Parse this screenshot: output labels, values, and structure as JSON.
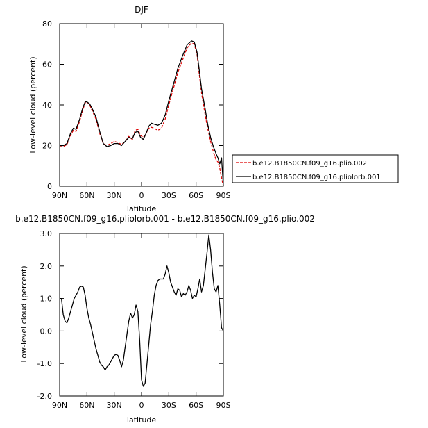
{
  "chart_data": [
    {
      "type": "line",
      "title": "DJF",
      "xlabel": "latitude",
      "ylabel": "Low-level cloud (percent)",
      "xlim": [
        90,
        -90
      ],
      "ylim": [
        0,
        80
      ],
      "xticks": [
        90,
        60,
        30,
        0,
        -30,
        -60,
        -90
      ],
      "xtick_labels": [
        "90N",
        "60N",
        "30N",
        "0",
        "30S",
        "60S",
        "90S"
      ],
      "yticks": [
        0,
        20,
        40,
        60,
        80
      ],
      "ytick_labels": [
        "0",
        "20",
        "40",
        "60",
        "80"
      ],
      "grid": false,
      "legend_position": "right",
      "series": [
        {
          "name": "b.e12.B1850CN.f09_g16.plio.002",
          "color": "#dd0000",
          "style": "dashed",
          "x": [
            90,
            86,
            82,
            78,
            75,
            72,
            68,
            65,
            62,
            60,
            57,
            54,
            50,
            46,
            42,
            38,
            34,
            30,
            26,
            22,
            18,
            14,
            10,
            7,
            4,
            1,
            -2,
            -5,
            -8,
            -11,
            -14,
            -18,
            -22,
            -26,
            -30,
            -35,
            -40,
            -45,
            -50,
            -55,
            -58,
            -61,
            -63,
            -66,
            -70,
            -73,
            -76,
            -79,
            -82,
            -84,
            -86,
            -88,
            -90
          ],
          "values": [
            19.5,
            19.5,
            20.5,
            25,
            27.5,
            27,
            32,
            37,
            41,
            41.5,
            40,
            37,
            33,
            26,
            21,
            20,
            21,
            22,
            21.5,
            20.5,
            22,
            24.5,
            23,
            27.5,
            28,
            25,
            24,
            26,
            28.5,
            29,
            28.5,
            27.5,
            28.5,
            33,
            40,
            48,
            56,
            62,
            68,
            70.5,
            70,
            65,
            57,
            46,
            35,
            28,
            22,
            17,
            13,
            12,
            9,
            4,
            0
          ]
        },
        {
          "name": "b.e12.B1850CN.f09_g16.pliolorb.001",
          "color": "#000000",
          "style": "solid",
          "x": [
            90,
            86,
            82,
            78,
            75,
            72,
            68,
            65,
            62,
            60,
            57,
            54,
            50,
            46,
            42,
            38,
            34,
            30,
            26,
            22,
            18,
            14,
            10,
            7,
            4,
            1,
            -2,
            -5,
            -8,
            -11,
            -14,
            -18,
            -22,
            -26,
            -30,
            -35,
            -40,
            -45,
            -50,
            -55,
            -58,
            -61,
            -63,
            -66,
            -70,
            -73,
            -76,
            -79,
            -82,
            -84,
            -86,
            -88,
            -90
          ],
          "values": [
            20,
            20,
            21,
            26,
            28.5,
            28,
            33,
            38,
            41.5,
            41.5,
            40.5,
            38,
            34,
            27,
            21,
            19.5,
            20,
            21,
            21,
            20,
            22,
            24,
            23.5,
            26.5,
            27,
            24,
            23,
            26,
            29.5,
            31,
            30.5,
            30,
            31,
            35,
            42,
            50,
            58,
            64,
            69.5,
            71.5,
            71,
            66,
            59,
            48,
            38,
            30,
            24,
            19.5,
            16,
            14,
            11,
            14,
            0
          ]
        }
      ]
    },
    {
      "type": "line",
      "title": "b.e12.B1850CN.f09_g16.pliolorb.001 - b.e12.B1850CN.f09_g16.plio.002",
      "xlabel": "latitude",
      "ylabel": "Low-level cloud (percent)",
      "xlim": [
        90,
        -90
      ],
      "ylim": [
        -2,
        3
      ],
      "xticks": [
        90,
        60,
        30,
        0,
        -30,
        -60,
        -90
      ],
      "xtick_labels": [
        "90N",
        "60N",
        "30N",
        "0",
        "30S",
        "60S",
        "90S"
      ],
      "yticks": [
        -2,
        -1,
        0,
        1,
        2,
        3
      ],
      "ytick_labels": [
        "-2.0",
        "-1.0",
        "0.0",
        "1.0",
        "2.0",
        "3.0"
      ],
      "grid": false,
      "series": [
        {
          "color": "#000000",
          "style": "solid",
          "x": [
            90,
            88,
            86,
            84,
            82,
            80,
            78,
            76,
            74,
            72,
            70,
            68,
            66,
            64,
            62,
            60,
            58,
            56,
            54,
            52,
            50,
            48,
            46,
            44,
            42,
            40,
            38,
            36,
            34,
            32,
            30,
            28,
            26,
            24,
            22,
            20,
            18,
            16,
            14,
            12,
            10,
            8,
            6,
            4,
            2,
            0,
            -2,
            -4,
            -6,
            -8,
            -10,
            -12,
            -14,
            -16,
            -18,
            -20,
            -22,
            -24,
            -26,
            -28,
            -30,
            -32,
            -34,
            -36,
            -38,
            -40,
            -42,
            -44,
            -46,
            -48,
            -50,
            -52,
            -54,
            -56,
            -58,
            -60,
            -62,
            -64,
            -66,
            -68,
            -70,
            -72,
            -74,
            -76,
            -78,
            -80,
            -82,
            -84,
            -86,
            -88,
            -90
          ],
          "values": [
            1.0,
            1.0,
            0.5,
            0.3,
            0.25,
            0.4,
            0.6,
            0.8,
            1.0,
            1.1,
            1.2,
            1.35,
            1.38,
            1.35,
            1.1,
            0.7,
            0.4,
            0.2,
            -0.05,
            -0.3,
            -0.55,
            -0.75,
            -0.95,
            -1.05,
            -1.1,
            -1.2,
            -1.1,
            -1.05,
            -0.95,
            -0.85,
            -0.75,
            -0.72,
            -0.75,
            -0.9,
            -1.1,
            -0.9,
            -0.5,
            -0.1,
            0.3,
            0.55,
            0.4,
            0.5,
            0.8,
            0.6,
            -0.3,
            -1.5,
            -1.7,
            -1.6,
            -1.0,
            -0.4,
            0.2,
            0.6,
            1.1,
            1.4,
            1.55,
            1.6,
            1.6,
            1.6,
            1.75,
            2.0,
            1.8,
            1.5,
            1.35,
            1.2,
            1.1,
            1.3,
            1.25,
            1.05,
            1.15,
            1.1,
            1.2,
            1.4,
            1.25,
            1.0,
            1.1,
            1.05,
            1.3,
            1.6,
            1.2,
            1.4,
            1.9,
            2.4,
            2.95,
            2.5,
            1.8,
            1.3,
            1.2,
            1.4,
            0.8,
            0.1,
            0.0
          ]
        }
      ]
    }
  ],
  "legend": {
    "entries": [
      {
        "label": "b.e12.B1850CN.f09_g16.plio.002",
        "color": "#dd0000",
        "style": "dashed"
      },
      {
        "label": "b.e12.B1850CN.f09_g16.pliolorb.001",
        "color": "#000000",
        "style": "solid"
      }
    ]
  }
}
